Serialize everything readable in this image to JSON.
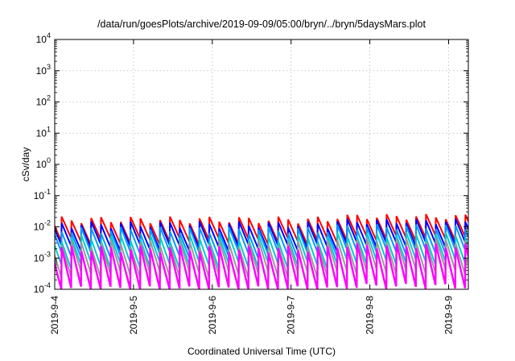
{
  "chart_data": {
    "type": "line",
    "title": "/data/run/goesPlots/archive/2019-09-09/05:00/bryn/../bryn/5daysMars.plot",
    "xlabel": "Coordinated Universal Time (UTC)",
    "ylabel": "cSv/day",
    "xlim": [
      "2019-09-04",
      "2019-09-09 06:00"
    ],
    "ylim": [
      0.0001,
      10000
    ],
    "y_scale": "log",
    "grid": true,
    "x_tick_labels": [
      "2019-9-4",
      "2019-9-5",
      "2019-9-6",
      "2019-9-7",
      "2019-9-8",
      "2019-9-9"
    ],
    "y_ticks": [
      {
        "value": 0.0001,
        "base": "10",
        "exp": "-4"
      },
      {
        "value": 0.001,
        "base": "10",
        "exp": "-3"
      },
      {
        "value": 0.01,
        "base": "10",
        "exp": "-2"
      },
      {
        "value": 0.1,
        "base": "10",
        "exp": "-1"
      },
      {
        "value": 1,
        "base": "10",
        "exp": "0"
      },
      {
        "value": 10,
        "base": "10",
        "exp": "1"
      },
      {
        "value": 100,
        "base": "10",
        "exp": "2"
      },
      {
        "value": 1000,
        "base": "10",
        "exp": "3"
      },
      {
        "value": 10000,
        "base": "10",
        "exp": "4"
      }
    ],
    "sawtooth_period_hours": 3,
    "series": [
      {
        "color": "#ff0000",
        "peak": 0.017,
        "trough": 0.0035
      },
      {
        "color": "#0000ff",
        "peak": 0.012,
        "trough": 0.0022
      },
      {
        "color": "#0099ff",
        "peak": 0.008,
        "trough": 0.0013
      },
      {
        "color": "#00cccc",
        "peak": 0.0045,
        "trough": 0.0006
      },
      {
        "color": "#999999",
        "peak": 0.003,
        "trough": 0.0003
      },
      {
        "color": "#ff00ff",
        "peak": 0.002,
        "trough": 0.0001
      }
    ]
  }
}
